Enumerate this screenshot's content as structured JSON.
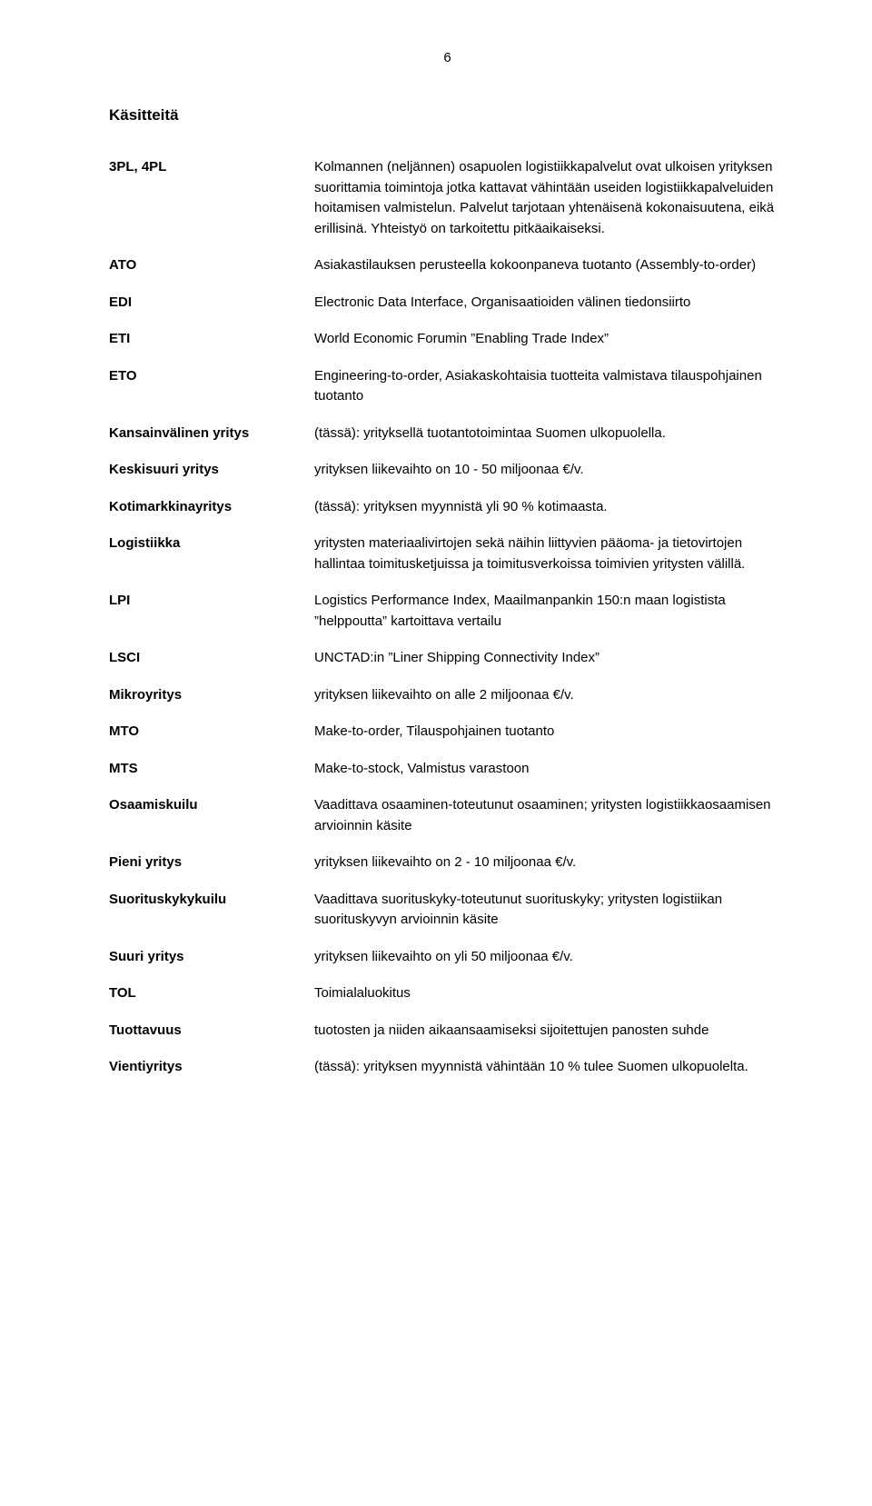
{
  "pageNumber": "6",
  "heading": "Käsitteitä",
  "entries": [
    {
      "term": "3PL, 4PL",
      "def": "Kolmannen (neljännen) osapuolen logistiikkapalvelut ovat ulkoisen yrityksen suorittamia toimintoja jotka kattavat vähintään useiden logistiikkapalveluiden hoitamisen valmistelun. Palvelut tarjotaan yhtenäisenä kokonaisuutena, eikä erillisinä. Yhteistyö on tarkoitettu pitkäaikaiseksi."
    },
    {
      "term": "ATO",
      "def": "Asiakastilauksen perusteella kokoonpaneva tuotanto (Assembly-to-order)"
    },
    {
      "term": "EDI",
      "def": "Electronic Data Interface, Organisaatioiden välinen tiedonsiirto"
    },
    {
      "term": "ETI",
      "def": "World Economic Forumin ”Enabling Trade Index”"
    },
    {
      "term": "ETO",
      "def": "Engineering-to-order, Asiakaskohtaisia tuotteita valmistava tilauspohjainen tuotanto"
    },
    {
      "term": "Kansainvälinen yritys",
      "def": "(tässä): yrityksellä tuotantotoimintaa Suomen ulkopuolella."
    },
    {
      "term": "Keskisuuri yritys",
      "def": "yrityksen liikevaihto on 10 - 50 miljoonaa €/v."
    },
    {
      "term": "Kotimarkkinayritys",
      "def": "(tässä): yrityksen myynnistä yli 90 % kotimaasta."
    },
    {
      "term": "Logistiikka",
      "def": "yritysten materiaalivirtojen sekä näihin liittyvien pääoma- ja tietovirtojen hallintaa toimitusketjuissa ja toimitusverkoissa toimivien yritysten välillä."
    },
    {
      "term": "LPI",
      "def": "Logistics Performance Index, Maailmanpankin 150:n maan logistista ”helppoutta” kartoittava vertailu"
    },
    {
      "term": "LSCI",
      "def": "UNCTAD:in ”Liner Shipping Connectivity Index”"
    },
    {
      "term": "Mikroyritys",
      "def": "yrityksen liikevaihto on alle 2 miljoonaa €/v."
    },
    {
      "term": "MTO",
      "def": "Make-to-order, Tilauspohjainen tuotanto"
    },
    {
      "term": "MTS",
      "def": "Make-to-stock, Valmistus varastoon"
    },
    {
      "term": "Osaamiskuilu",
      "def": "Vaadittava osaaminen-toteutunut osaaminen; yritysten logistiikkaosaamisen arvioinnin käsite"
    },
    {
      "term": "Pieni yritys",
      "def": "yrityksen liikevaihto on 2 - 10 miljoonaa €/v."
    },
    {
      "term": "Suorituskykykuilu",
      "def": "Vaadittava suorituskyky-toteutunut suorituskyky; yritysten logistiikan suorituskyvyn arvioinnin käsite"
    },
    {
      "term": "Suuri yritys",
      "def": "yrityksen liikevaihto on yli 50 miljoonaa €/v."
    },
    {
      "term": "TOL",
      "def": "Toimialaluokitus"
    },
    {
      "term": "Tuottavuus",
      "def": "tuotosten ja niiden aikaansaamiseksi sijoitettujen panosten suhde"
    },
    {
      "term": "Vientiyritys",
      "def": "(tässä): yrityksen myynnistä vähintään 10 % tulee Suomen ulkopuolelta."
    }
  ]
}
